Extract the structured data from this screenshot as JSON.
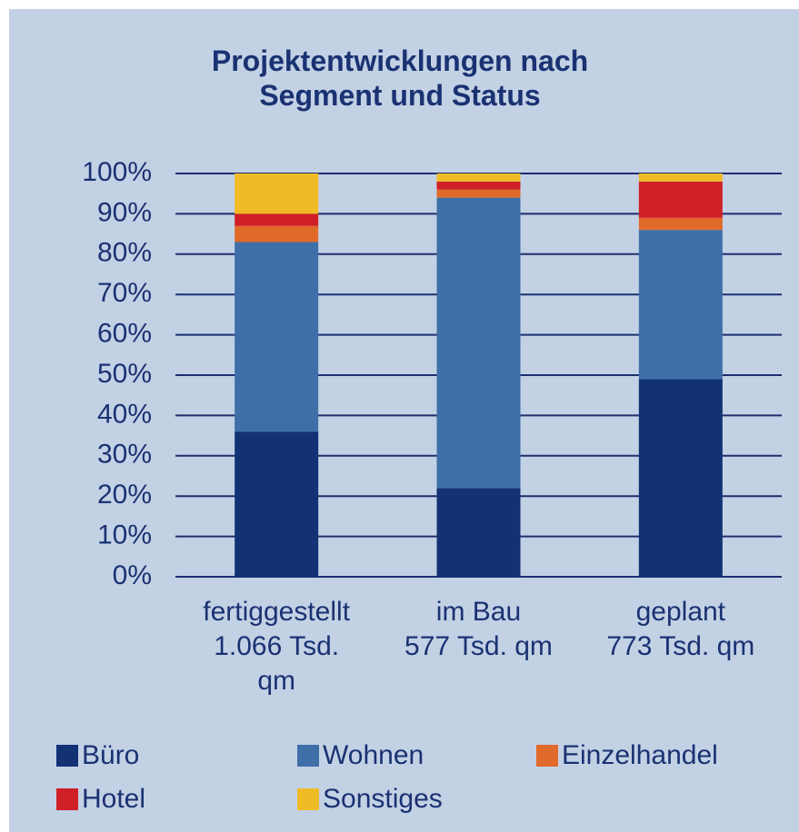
{
  "chart_data": {
    "type": "stacked_bar",
    "title": "Projektentwicklungen nach\nSegment und Status",
    "categories": [
      "fertiggestellt\n1.066 Tsd.\nqm",
      "im Bau\n577 Tsd. qm",
      "geplant\n773 Tsd. qm"
    ],
    "series": [
      {
        "name": "Büro",
        "color": "#123274",
        "values": [
          36,
          22,
          49
        ]
      },
      {
        "name": "Wohnen",
        "color": "#3f6fa8",
        "values": [
          47,
          72,
          37
        ]
      },
      {
        "name": "Einzelhandel",
        "color": "#e06a2a",
        "values": [
          4,
          2,
          3
        ]
      },
      {
        "name": "Hotel",
        "color": "#d02027",
        "values": [
          3,
          2,
          9
        ]
      },
      {
        "name": "Sonstiges",
        "color": "#f0bc25",
        "values": [
          10,
          2,
          2
        ]
      }
    ],
    "ylim": [
      0,
      100
    ],
    "yticks": [
      {
        "value": 0,
        "label": "0%"
      },
      {
        "value": 10,
        "label": "10%"
      },
      {
        "value": 20,
        "label": "20%"
      },
      {
        "value": 30,
        "label": "30%"
      },
      {
        "value": 40,
        "label": "40%"
      },
      {
        "value": 50,
        "label": "50%"
      },
      {
        "value": 60,
        "label": "60%"
      },
      {
        "value": 70,
        "label": "70%"
      },
      {
        "value": 80,
        "label": "80%"
      },
      {
        "value": 90,
        "label": "90%"
      },
      {
        "value": 100,
        "label": "100%"
      }
    ],
    "grid": true
  }
}
